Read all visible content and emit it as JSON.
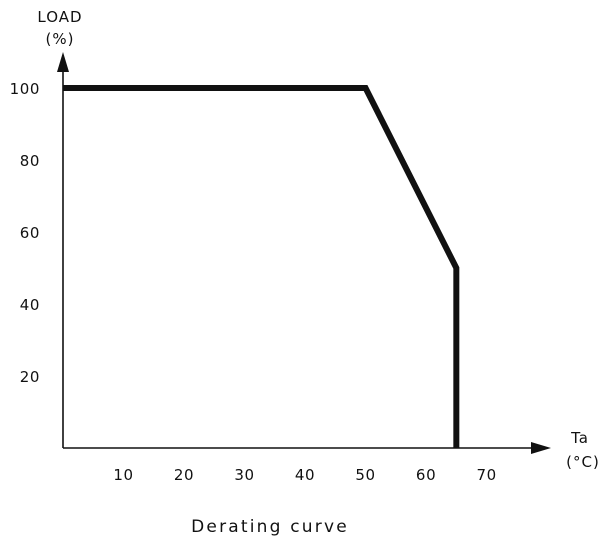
{
  "chart_data": {
    "type": "line",
    "title": "Derating curve",
    "xlabel": [
      "Ta",
      "(°C)"
    ],
    "ylabel": [
      "LOAD",
      "(%)"
    ],
    "x_ticks": [
      10,
      20,
      30,
      40,
      50,
      60,
      70
    ],
    "y_ticks": [
      20,
      40,
      60,
      80,
      100
    ],
    "xlim": [
      0,
      78
    ],
    "ylim": [
      0,
      110
    ],
    "grid": false,
    "series": [
      {
        "x": [
          0,
          50,
          65,
          65
        ],
        "y": [
          100,
          100,
          50,
          0
        ]
      }
    ],
    "line_color": "#111111"
  }
}
